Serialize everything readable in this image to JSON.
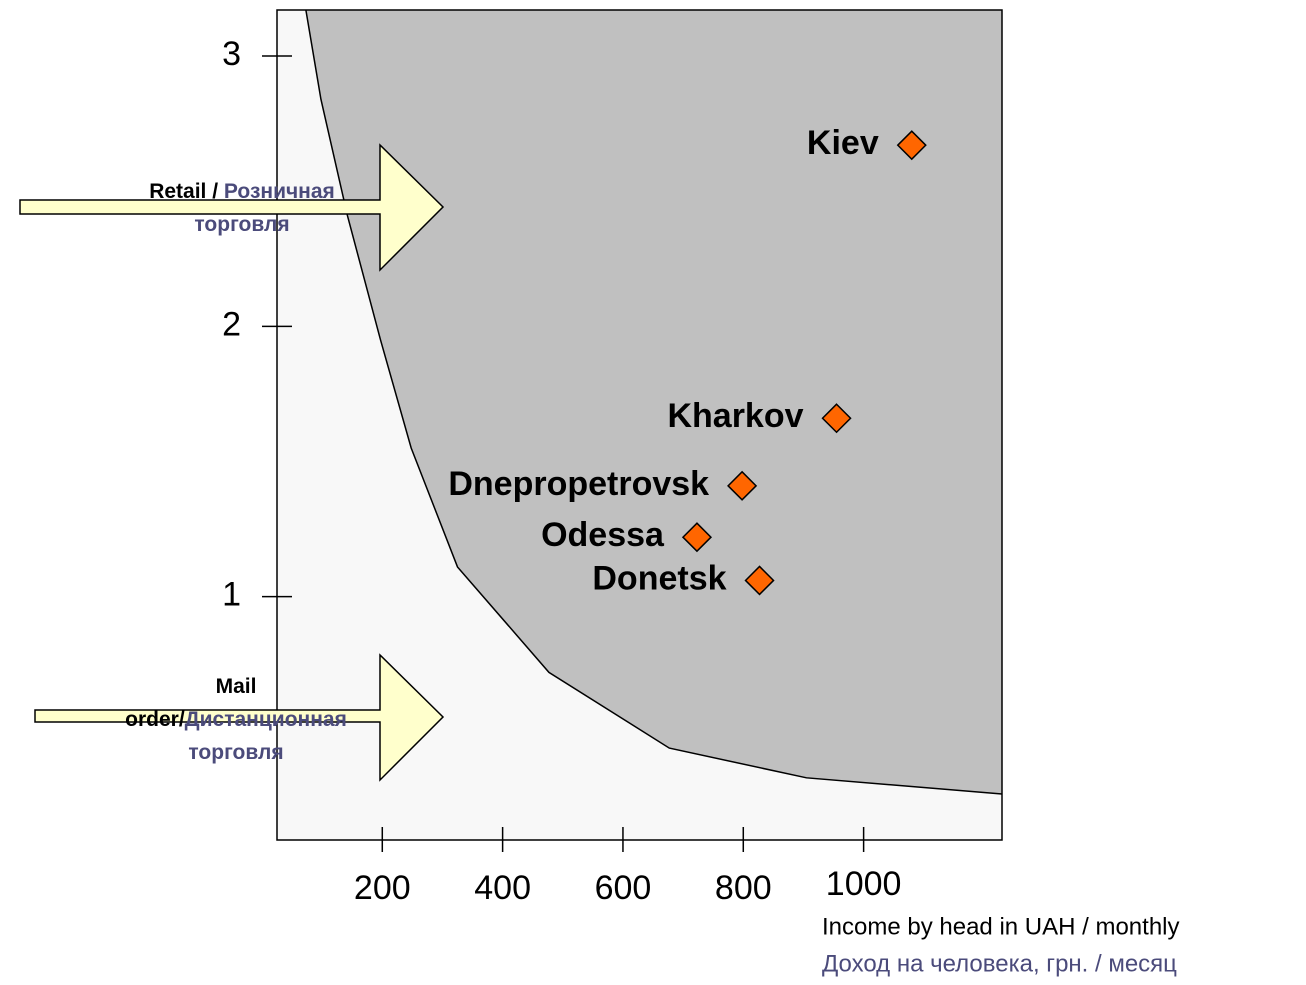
{
  "chart_data": {
    "type": "scatter",
    "series": [
      {
        "name": null,
        "color": "#ff6600",
        "labels": [
          "Kiev",
          "Kharkov",
          "Dnepropetrovsk",
          "Odessa",
          "Donetsk"
        ],
        "x": [
          1080,
          955,
          798,
          723,
          827
        ],
        "values": [
          2.67,
          1.66,
          1.41,
          1.22,
          1.06
        ]
      }
    ],
    "boundary": {
      "x": [
        73,
        98,
        142,
        197,
        248,
        325,
        477,
        677,
        905,
        1230
      ],
      "values": [
        3.17,
        2.84,
        2.41,
        1.95,
        1.55,
        1.11,
        0.72,
        0.44,
        0.33,
        0.27
      ],
      "fill_above": "#c0c0c0",
      "fill_below": "#f8f8f8"
    },
    "xlim": [
      25,
      1230
    ],
    "xticks": [
      200,
      400,
      600,
      800,
      1000
    ],
    "ylim": [
      0.1,
      3.17
    ],
    "yticks": [
      1,
      2,
      3
    ],
    "x_label": [
      {
        "text": "Income by head in UAH / monthly",
        "color": "#000000"
      },
      {
        "text": "Доход на человека, грн. / месяц",
        "color": "#4b4b7b"
      }
    ],
    "annotations": [
      {
        "lines": [
          [
            {
              "text": "Retail / ",
              "color": "#000000"
            },
            {
              "text": "Розничная",
              "color": "#4b4b7b"
            }
          ],
          [
            {
              "text": "торговля",
              "color": "#4b4b7b"
            }
          ]
        ]
      },
      {
        "lines": [
          [
            {
              "text": "Mail",
              "color": "#000000"
            }
          ],
          [
            {
              "text": "order/",
              "color": "#000000"
            },
            {
              "text": "Дистанционная",
              "color": "#4b4b7b"
            }
          ],
          [
            {
              "text": "торговля",
              "color": "#4b4b7b"
            }
          ]
        ]
      }
    ]
  }
}
